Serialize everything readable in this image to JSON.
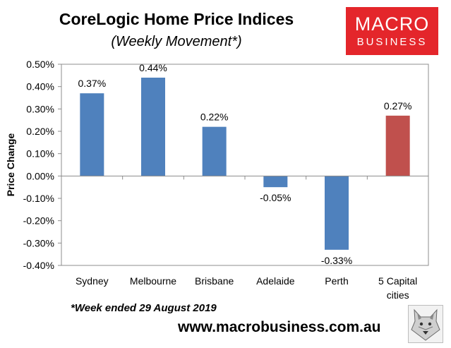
{
  "header": {
    "title": "CoreLogic Home Price Indices",
    "subtitle": "(Weekly Movement*)"
  },
  "logo": {
    "line1": "MACRO",
    "line2": "BUSINESS",
    "color": "#e4262b"
  },
  "footnote": "*Week ended 29 August 2019",
  "website": "www.macrobusiness.com.au",
  "colors": {
    "bar": "#4f81bd",
    "highlight": "#c0504d",
    "plot_bg": "#ffffff"
  },
  "chart_data": {
    "type": "bar",
    "title": "CoreLogic Home Price Indices",
    "subtitle": "(Weekly Movement*)",
    "ylabel": "Price Change",
    "xlabel": "",
    "ylim": [
      -0.004,
      0.005
    ],
    "yticks": [
      "0.50%",
      "0.40%",
      "0.30%",
      "0.20%",
      "0.10%",
      "0.00%",
      "-0.10%",
      "-0.20%",
      "-0.30%",
      "-0.40%"
    ],
    "ytick_values": [
      0.005,
      0.004,
      0.003,
      0.002,
      0.001,
      0.0,
      -0.001,
      -0.002,
      -0.003,
      -0.004
    ],
    "grid": false,
    "categories": [
      "Sydney",
      "Melbourne",
      "Brisbane",
      "Adelaide",
      "Perth",
      "5 Capital cities"
    ],
    "values": [
      0.0037,
      0.0044,
      0.0022,
      -0.0005,
      -0.0033,
      0.0027
    ],
    "data_labels": [
      "0.37%",
      "0.44%",
      "0.22%",
      "-0.05%",
      "-0.33%",
      "0.27%"
    ],
    "bar_colors": [
      "#4f81bd",
      "#4f81bd",
      "#4f81bd",
      "#4f81bd",
      "#4f81bd",
      "#c0504d"
    ]
  }
}
